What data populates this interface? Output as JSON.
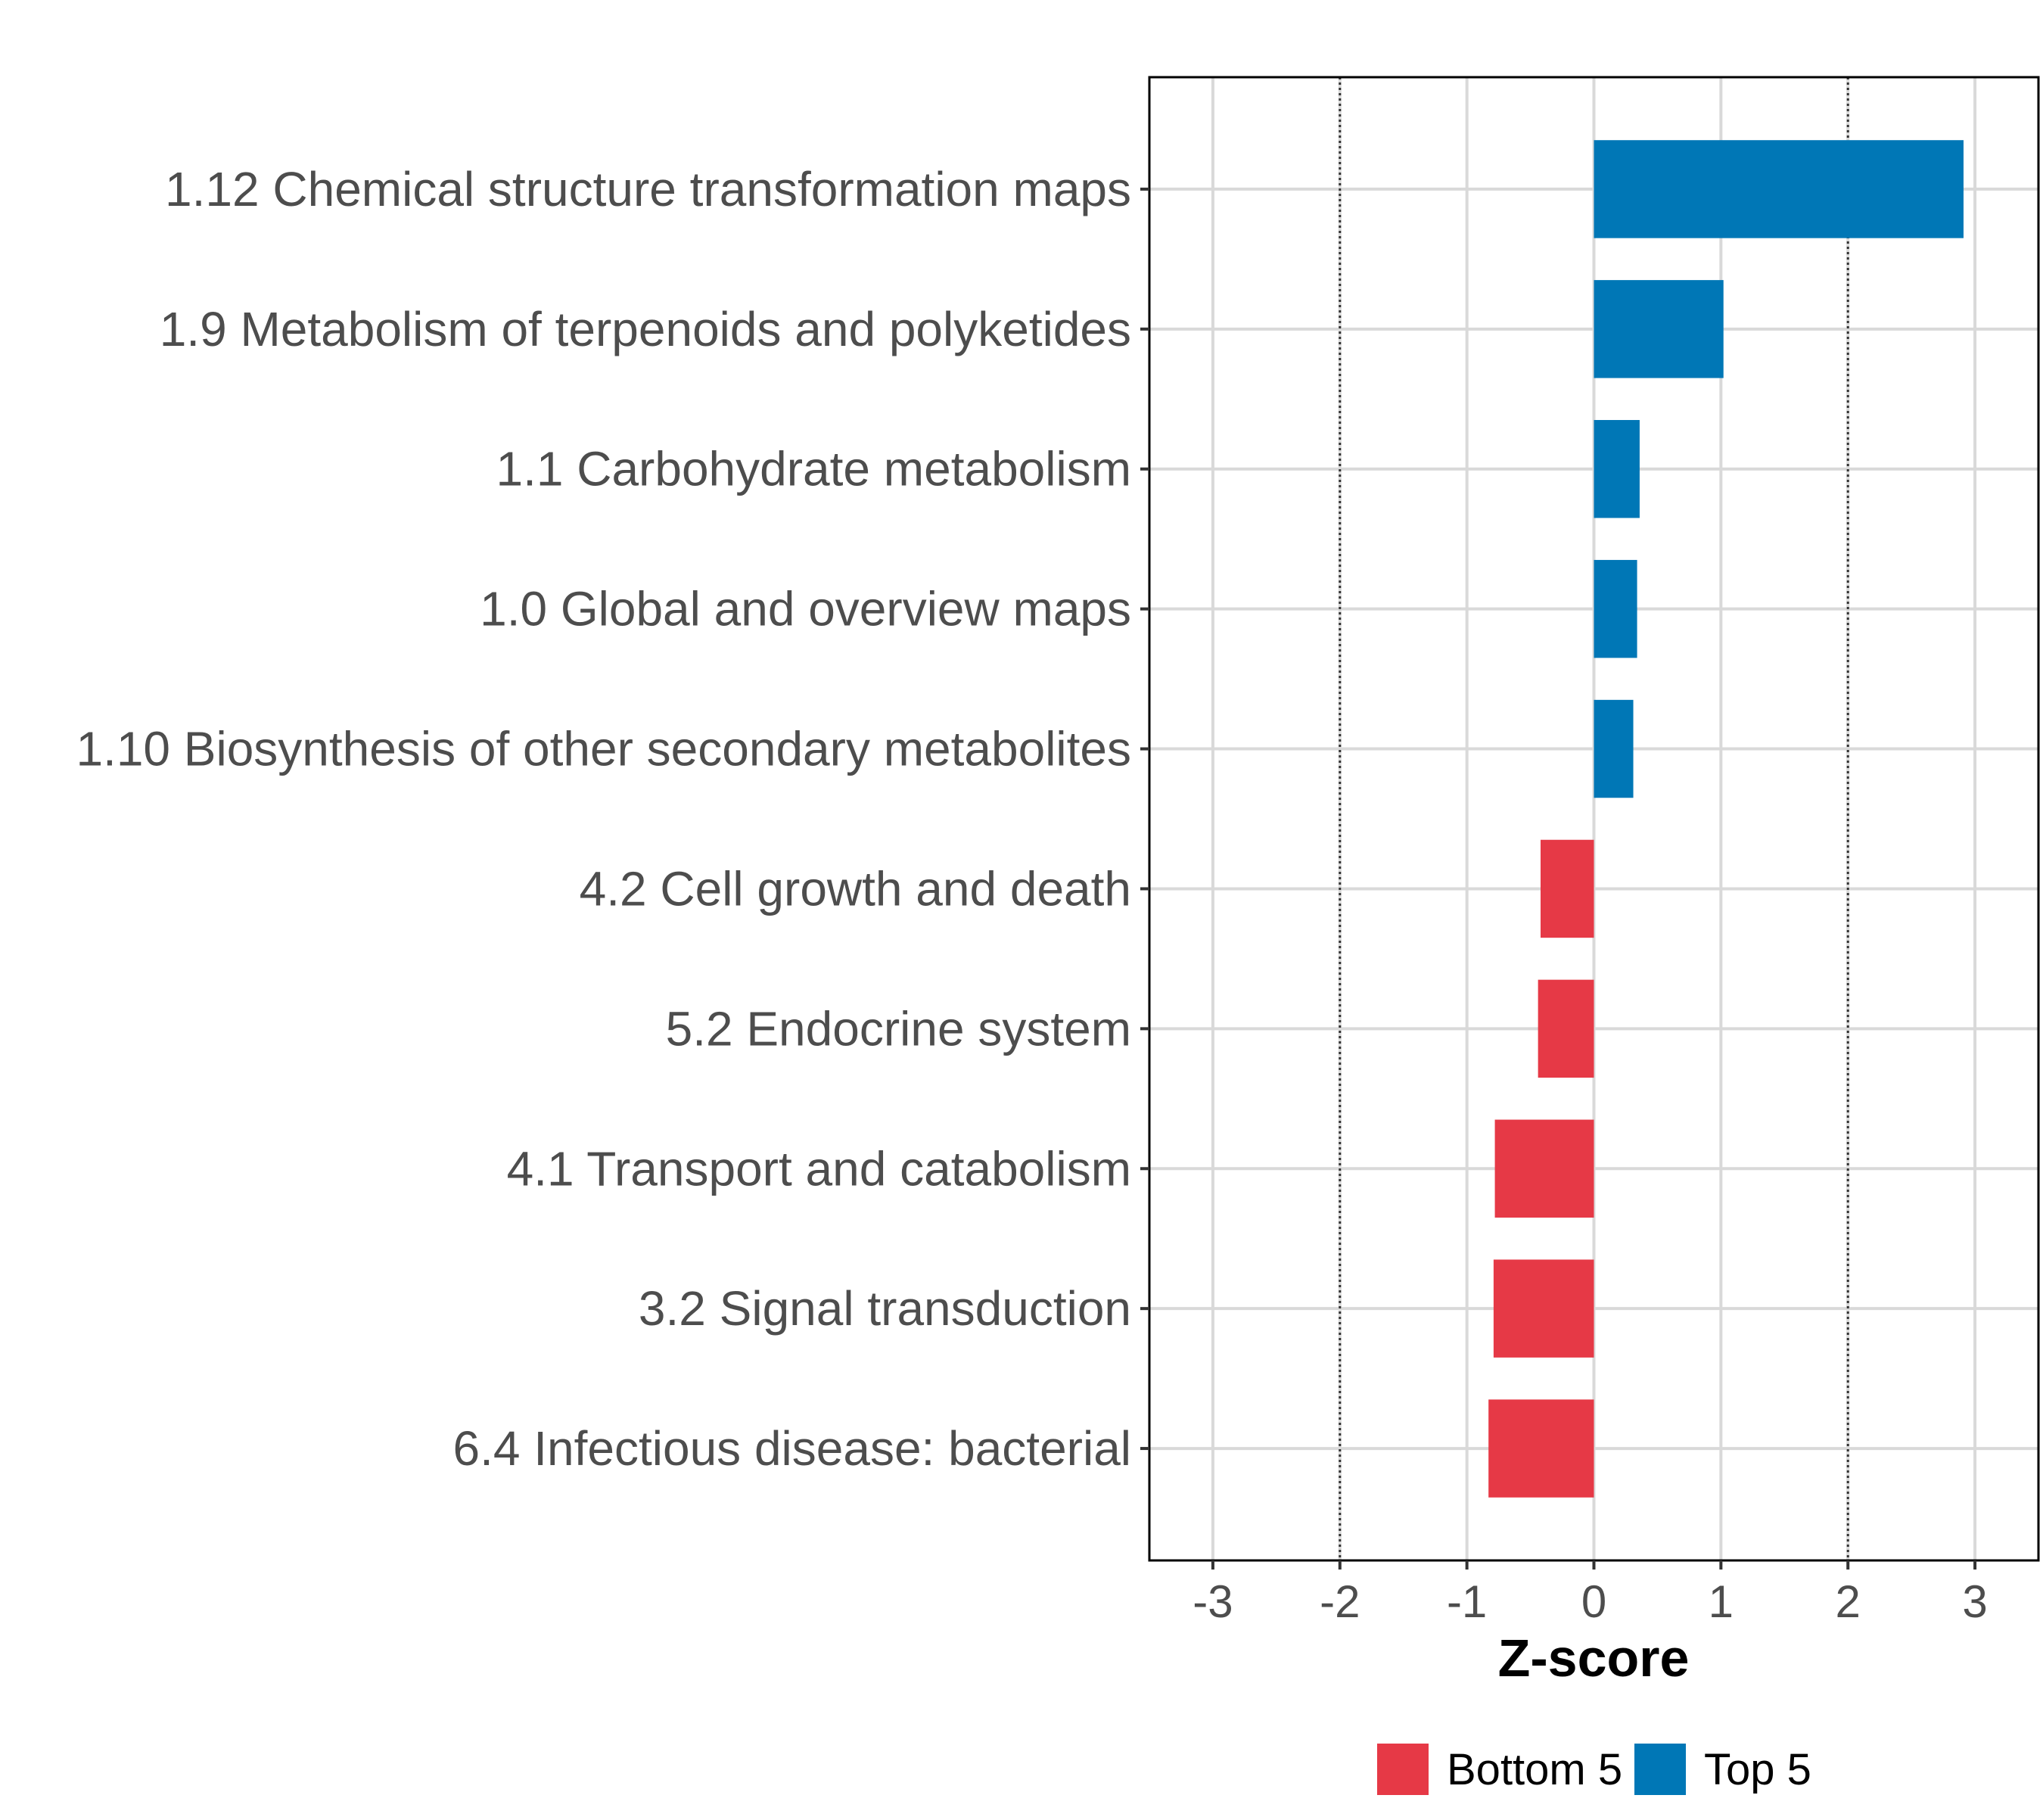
{
  "chart_data": {
    "type": "bar",
    "orientation": "horizontal",
    "title": "",
    "xlabel": "Z-score",
    "ylabel": "",
    "xlim": [
      -3.5,
      3.5
    ],
    "x_ticks": [
      -3,
      -2,
      -1,
      0,
      1,
      2,
      3
    ],
    "x_tick_labels": [
      "-3",
      "-2",
      "-1",
      "0",
      "1",
      "2",
      "3"
    ],
    "reference_lines": [
      -2,
      2
    ],
    "grid": true,
    "legend_position": "bottom",
    "categories": [
      "1.12 Chemical structure transformation maps",
      "1.9 Metabolism of terpenoids and polyketides",
      "1.1 Carbohydrate metabolism",
      "1.0 Global and overview maps",
      "1.10 Biosynthesis of other secondary metabolites",
      "4.2 Cell growth and death",
      "5.2 Endocrine system",
      "4.1 Transport and catabolism",
      "3.2 Signal transduction",
      "6.4 Infectious disease: bacterial"
    ],
    "values": [
      2.91,
      1.02,
      0.36,
      0.34,
      0.31,
      -0.42,
      -0.44,
      -0.78,
      -0.79,
      -0.83
    ],
    "groups": [
      "Top 5",
      "Top 5",
      "Top 5",
      "Top 5",
      "Top 5",
      "Bottom 5",
      "Bottom 5",
      "Bottom 5",
      "Bottom 5",
      "Bottom 5"
    ],
    "legend": [
      {
        "name": "Bottom 5",
        "color": "#E63946"
      },
      {
        "name": "Top 5",
        "color": "#0077B6"
      }
    ]
  }
}
